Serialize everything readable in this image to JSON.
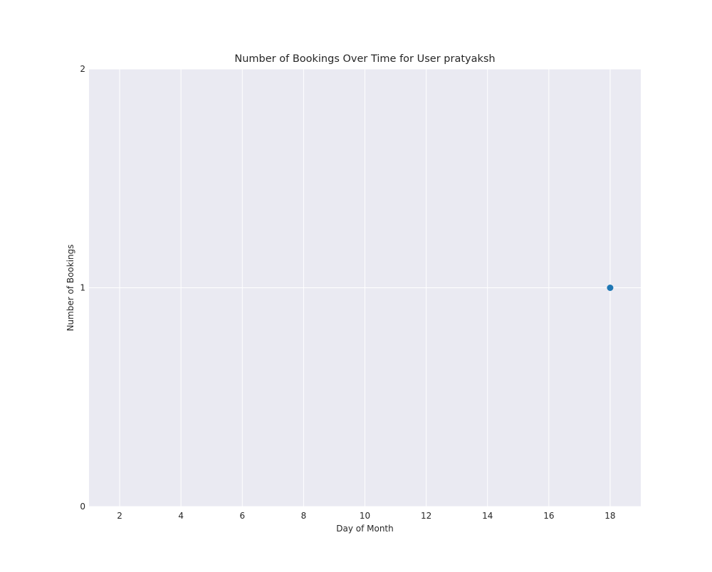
{
  "chart_data": {
    "type": "scatter",
    "title": "Number of Bookings Over Time for User pratyaksh",
    "xlabel": "Day of Month",
    "ylabel": "Number of Bookings",
    "xlim": [
      1,
      19
    ],
    "ylim": [
      0,
      2
    ],
    "x_ticks": [
      2,
      4,
      6,
      8,
      10,
      12,
      14,
      16,
      18
    ],
    "y_ticks": [
      0,
      1,
      2
    ],
    "grid": true,
    "series": [
      {
        "name": "bookings",
        "color": "#1f77b4",
        "points": [
          {
            "x": 18,
            "y": 1
          }
        ]
      }
    ],
    "plot_background": "#eaeaf2",
    "grid_color": "#ffffff"
  }
}
